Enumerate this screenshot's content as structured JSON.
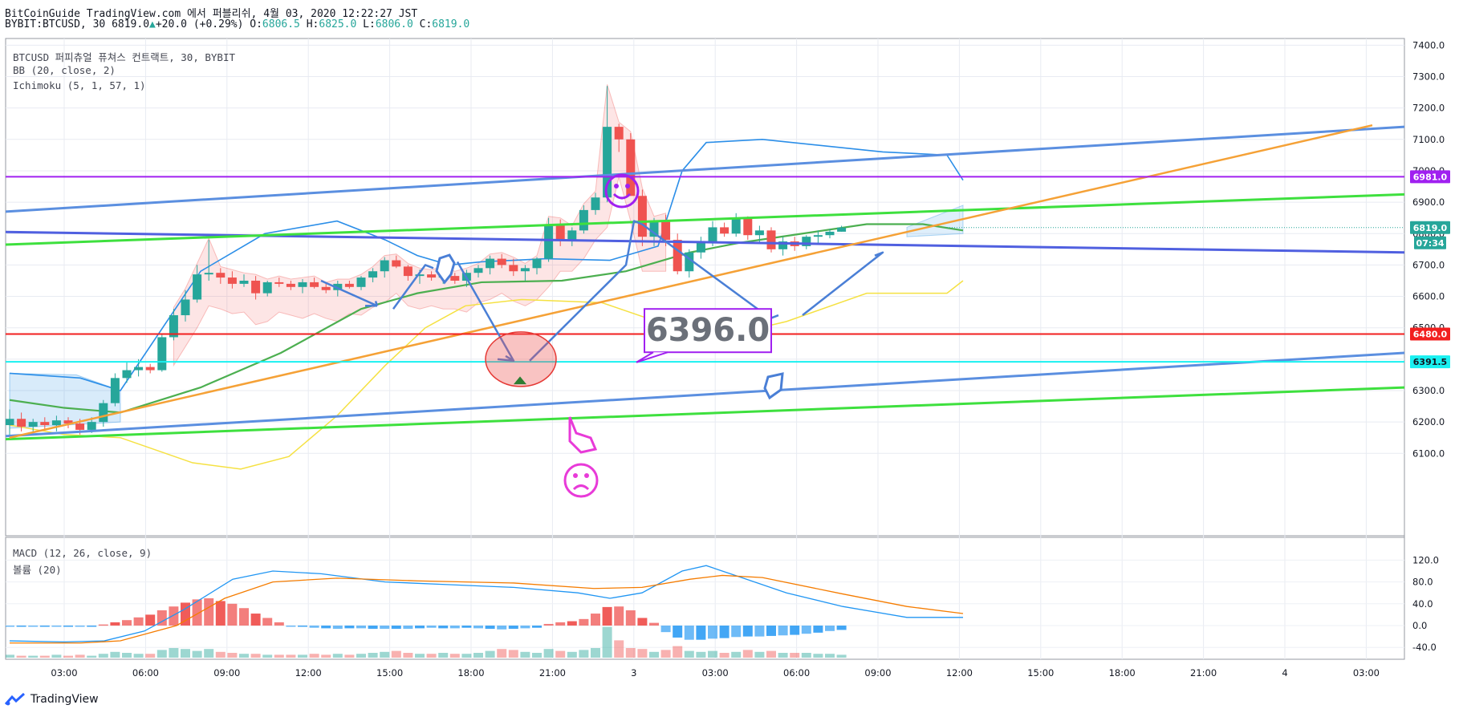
{
  "header": {
    "line1": "BitCoinGuide TradingView.com 에서 퍼블리쉬, 4월 03, 2020 12:22:27 JST",
    "symbol": "BYBIT:BTCUSD, 30",
    "last": "6819.0",
    "change": "+20.0 (+0.29%)",
    "o_label": "O:",
    "o": "6806.5",
    "h_label": "H:",
    "h": "6825.0",
    "l_label": "L:",
    "l": "6806.0",
    "c_label": "C:",
    "c": "6819.0"
  },
  "indicators": {
    "main": "BTCUSD 퍼피츄얼 퓨쳐스 컨트랙트, 30, BYBIT",
    "bb": "BB (20, close, 2)",
    "ichimoku": "Ichimoku (5, 1, 57, 1)",
    "macd": "MACD (12, 26, close, 9)",
    "volume": "볼륨 (20)"
  },
  "footer": {
    "brand": "TradingView"
  },
  "colors": {
    "up": "#26a69a",
    "down": "#ef5350",
    "blue_channel": "#5b8fe0",
    "green_channel": "#3ee03e",
    "orange": "#f5a136",
    "purple_line": "#a020f0",
    "red_line": "#f21f1f",
    "cyan_line": "#19f0f0",
    "bb": "#2b8ee8",
    "ma_green": "#4caf50",
    "yellow": "#f5e142"
  },
  "chart_data": [
    {
      "type": "candlestick",
      "ylim": [
        6050,
        7420
      ],
      "y_ticks": [
        "6100.0",
        "6200.0",
        "6300.0",
        "6400.0",
        "6500.0",
        "6600.0",
        "6700.0",
        "6800.0",
        "6900.0",
        "7000.0",
        "7100.0",
        "7200.0",
        "7300.0",
        "7400.0"
      ],
      "x_ticks": [
        "03:00",
        "06:00",
        "09:00",
        "12:00",
        "15:00",
        "18:00",
        "21:00",
        "3",
        "03:00",
        "06:00",
        "09:00",
        "12:00",
        "15:00",
        "18:00",
        "21:00",
        "4",
        "03:00"
      ],
      "price_labels": [
        {
          "value": 6981.0,
          "text": "6981.0",
          "color": "#a020f0"
        },
        {
          "value": 6819.0,
          "text": "6819.0",
          "color": "#26a69a"
        },
        {
          "value": 6480.0,
          "text": "6480.0",
          "color": "#f21f1f"
        },
        {
          "value": 6391.5,
          "text": "6391.5",
          "color": "#19f0f0",
          "text_color": "#131722"
        }
      ],
      "countdown": "07:34",
      "annotation": "6396.0",
      "candles": [
        [
          6190,
          6240,
          6150,
          6210
        ],
        [
          6210,
          6230,
          6170,
          6185
        ],
        [
          6185,
          6210,
          6160,
          6200
        ],
        [
          6200,
          6215,
          6175,
          6190
        ],
        [
          6190,
          6220,
          6170,
          6205
        ],
        [
          6205,
          6215,
          6180,
          6195
        ],
        [
          6195,
          6210,
          6160,
          6175
        ],
        [
          6175,
          6215,
          6165,
          6200
        ],
        [
          6200,
          6270,
          6185,
          6260
        ],
        [
          6260,
          6355,
          6250,
          6340
        ],
        [
          6340,
          6390,
          6325,
          6365
        ],
        [
          6365,
          6400,
          6345,
          6375
        ],
        [
          6375,
          6385,
          6355,
          6365
        ],
        [
          6365,
          6480,
          6360,
          6470
        ],
        [
          6470,
          6560,
          6460,
          6540
        ],
        [
          6540,
          6620,
          6520,
          6590
        ],
        [
          6590,
          6700,
          6580,
          6670
        ],
        [
          6670,
          6780,
          6650,
          6675
        ],
        [
          6675,
          6690,
          6640,
          6660
        ],
        [
          6660,
          6680,
          6625,
          6640
        ],
        [
          6640,
          6670,
          6630,
          6650
        ],
        [
          6650,
          6665,
          6590,
          6610
        ],
        [
          6610,
          6650,
          6600,
          6645
        ],
        [
          6645,
          6660,
          6630,
          6640
        ],
        [
          6640,
          6650,
          6620,
          6630
        ],
        [
          6630,
          6655,
          6610,
          6645
        ],
        [
          6645,
          6660,
          6625,
          6630
        ],
        [
          6630,
          6640,
          6610,
          6620
        ],
        [
          6620,
          6650,
          6600,
          6640
        ],
        [
          6640,
          6650,
          6625,
          6630
        ],
        [
          6630,
          6665,
          6620,
          6660
        ],
        [
          6660,
          6690,
          6645,
          6680
        ],
        [
          6680,
          6725,
          6660,
          6715
        ],
        [
          6715,
          6730,
          6690,
          6695
        ],
        [
          6695,
          6700,
          6650,
          6665
        ],
        [
          6665,
          6685,
          6640,
          6670
        ],
        [
          6670,
          6680,
          6650,
          6660
        ],
        [
          6660,
          6690,
          6640,
          6665
        ],
        [
          6665,
          6675,
          6640,
          6650
        ],
        [
          6650,
          6685,
          6630,
          6675
        ],
        [
          6675,
          6700,
          6660,
          6690
        ],
        [
          6690,
          6730,
          6670,
          6720
        ],
        [
          6720,
          6735,
          6690,
          6700
        ],
        [
          6700,
          6720,
          6665,
          6680
        ],
        [
          6680,
          6700,
          6650,
          6690
        ],
        [
          6690,
          6725,
          6670,
          6720
        ],
        [
          6720,
          6850,
          6710,
          6830
        ],
        [
          6830,
          6845,
          6760,
          6780
        ],
        [
          6780,
          6820,
          6760,
          6810
        ],
        [
          6810,
          6890,
          6800,
          6875
        ],
        [
          6875,
          6930,
          6860,
          6915
        ],
        [
          6915,
          7270,
          6900,
          7140
        ],
        [
          7140,
          7150,
          7060,
          7100
        ],
        [
          7100,
          7120,
          6920,
          6920
        ],
        [
          6920,
          6940,
          6760,
          6790
        ],
        [
          6790,
          6850,
          6760,
          6840
        ],
        [
          6840,
          6860,
          6760,
          6780
        ],
        [
          6780,
          6800,
          6670,
          6680
        ],
        [
          6680,
          6750,
          6660,
          6740
        ],
        [
          6740,
          6790,
          6720,
          6775
        ],
        [
          6775,
          6840,
          6760,
          6820
        ],
        [
          6820,
          6835,
          6790,
          6800
        ],
        [
          6800,
          6865,
          6790,
          6850
        ],
        [
          6850,
          6855,
          6780,
          6795
        ],
        [
          6795,
          6825,
          6770,
          6810
        ],
        [
          6810,
          6820,
          6740,
          6750
        ],
        [
          6750,
          6790,
          6730,
          6775
        ],
        [
          6775,
          6790,
          6745,
          6760
        ],
        [
          6760,
          6795,
          6750,
          6790
        ],
        [
          6790,
          6810,
          6770,
          6795
        ],
        [
          6795,
          6815,
          6785,
          6806
        ],
        [
          6806,
          6825,
          6806,
          6819
        ]
      ]
    },
    {
      "type": "bar",
      "title": "MACD (12, 26, close, 9)",
      "ylim": [
        -48,
        128
      ],
      "y_ticks": [
        "120.0",
        "80.0",
        "40.0",
        "0.0",
        "-40.0"
      ],
      "histogram": [
        0,
        0,
        0,
        0,
        0,
        0,
        0,
        0,
        2,
        6,
        10,
        15,
        20,
        28,
        35,
        42,
        48,
        50,
        45,
        40,
        32,
        22,
        14,
        6,
        0,
        -2,
        -4,
        -5,
        -6,
        -5,
        -5,
        -6,
        -6,
        -6,
        -6,
        -5,
        -4,
        -5,
        -5,
        -4,
        -5,
        -6,
        -7,
        -6,
        -5,
        -4,
        3,
        6,
        8,
        12,
        22,
        34,
        35,
        28,
        14,
        5,
        -12,
        -22,
        -26,
        -26,
        -24,
        -23,
        -21,
        -20,
        -20,
        -19,
        -18,
        -17,
        -15,
        -13,
        -10,
        -8
      ]
    }
  ]
}
